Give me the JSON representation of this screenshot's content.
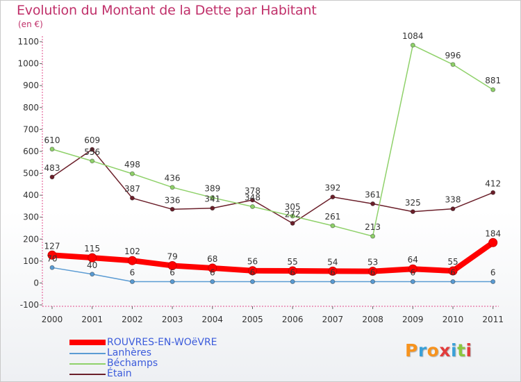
{
  "header": {
    "title": "Evolution du Montant de la Dette par Habitant",
    "unit": "(en €)"
  },
  "logo": {
    "text": "Proxiti",
    "colors": [
      "#f7931e",
      "#3aa0d8",
      "#f7931e",
      "#e23c3c",
      "#3aa0d8",
      "#8cc63f",
      "#e23c3c"
    ]
  },
  "chart_data": {
    "type": "line",
    "title": "Evolution du Montant de la Dette par Habitant",
    "ylabel": "(en €)",
    "xlabel": "",
    "ylim": [
      -100,
      1100
    ],
    "yticks": [
      -100,
      0,
      100,
      200,
      300,
      400,
      500,
      600,
      700,
      800,
      900,
      1000,
      1100
    ],
    "grid": false,
    "legend": "bottom-left",
    "categories": [
      "2000",
      "2001",
      "2002",
      "2003",
      "2004",
      "2005",
      "2006",
      "2007",
      "2008",
      "2009",
      "2010",
      "2011"
    ],
    "series": [
      {
        "name": "Étain",
        "color": "#6b1f2a",
        "values": [
          483,
          609,
          387,
          336,
          341,
          378,
          272,
          392,
          361,
          325,
          338,
          412
        ]
      },
      {
        "name": "Béchamps",
        "color": "#8fd16a",
        "values": [
          610,
          556,
          498,
          436,
          389,
          348,
          305,
          261,
          213,
          1084,
          996,
          881
        ]
      },
      {
        "name": "Lanhères",
        "color": "#5a9bd3",
        "values": [
          70,
          40,
          6,
          6,
          6,
          6,
          6,
          6,
          6,
          6,
          6,
          6
        ]
      },
      {
        "name": "ROUVRES-EN-WOëVRE",
        "color": "#ff0000",
        "values": [
          127,
          115,
          102,
          79,
          68,
          56,
          55,
          54,
          53,
          64,
          55,
          184
        ]
      }
    ],
    "point_labels": [
      {
        "series": 0,
        "labels": [
          "483",
          "609",
          "387",
          "336",
          "341",
          "378",
          "272",
          "392",
          "361",
          "325",
          "338",
          "412"
        ]
      },
      {
        "series": 1,
        "labels": [
          "610",
          "556",
          "498",
          "436",
          "389",
          "348",
          "305",
          "261",
          "213",
          "1084",
          "996",
          "881"
        ]
      },
      {
        "series": 2,
        "labels": [
          "70",
          "40",
          "6",
          "6",
          "6",
          "6",
          "6",
          "6",
          "6",
          "6",
          "6",
          "6"
        ]
      },
      {
        "series": 3,
        "labels": [
          "127",
          "115",
          "102",
          "79",
          "68",
          "56",
          "55",
          "54",
          "53",
          "64",
          "55",
          "184"
        ]
      }
    ]
  },
  "legend": {
    "items": [
      {
        "label": "ROUVRES-EN-WOëVRE",
        "color": "#ff0000",
        "thick": true
      },
      {
        "label": "Lanhères",
        "color": "#5a9bd3",
        "thick": false
      },
      {
        "label": "Béchamps",
        "color": "#8fd16a",
        "thick": false
      },
      {
        "label": "Étain",
        "color": "#6b1f2a",
        "thick": false
      }
    ]
  }
}
